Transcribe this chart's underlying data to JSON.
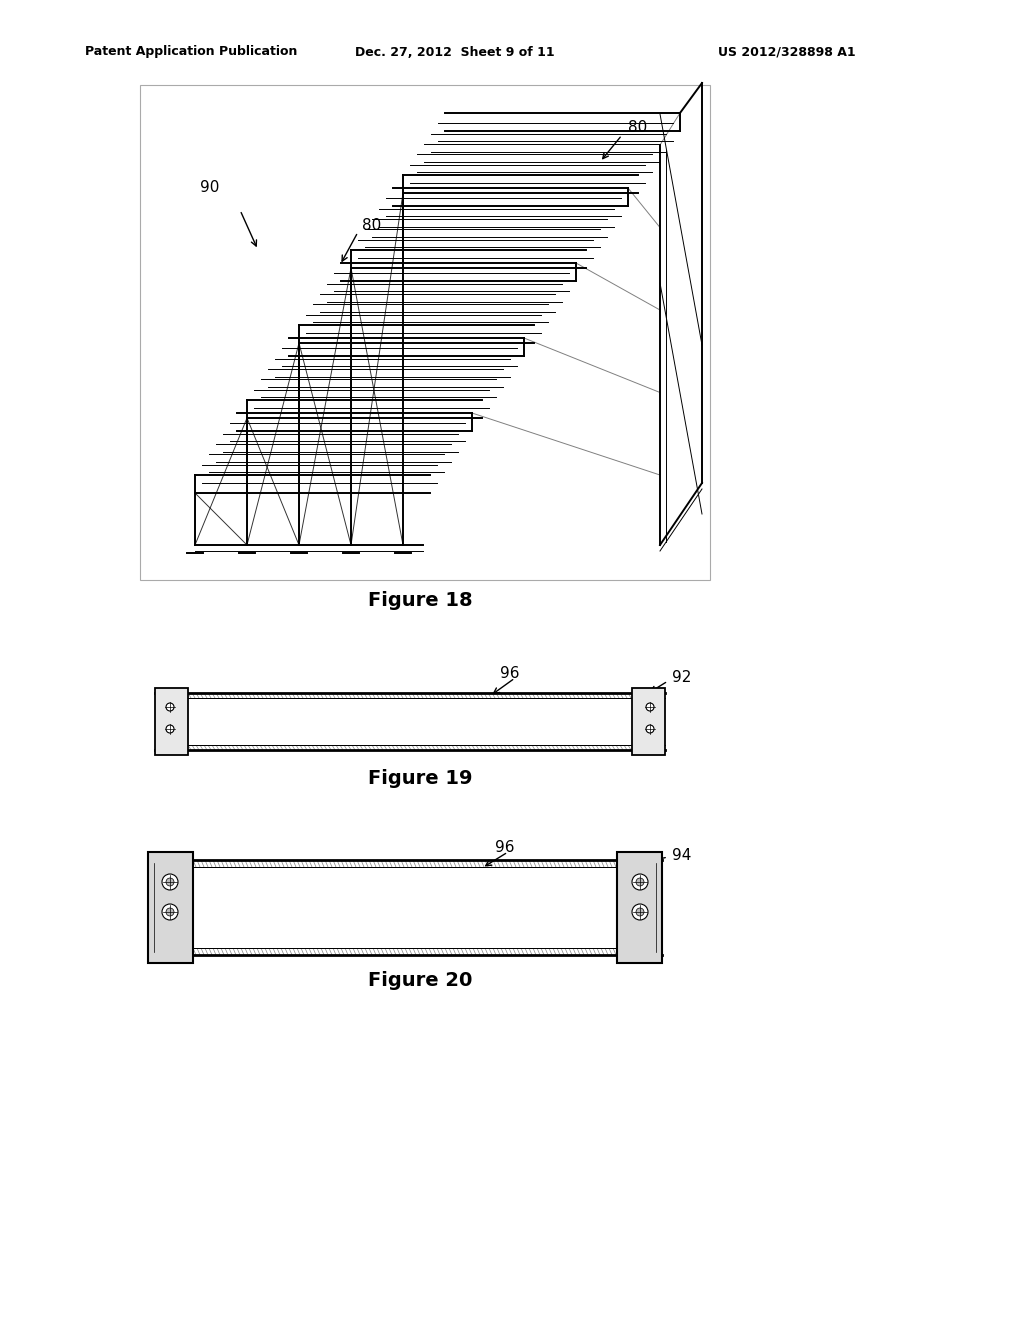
{
  "bg_color": "#ffffff",
  "header_left": "Patent Application Publication",
  "header_mid": "Dec. 27, 2012  Sheet 9 of 11",
  "header_right": "US 2012/328898 A1",
  "fig18_label": "Figure 18",
  "fig19_label": "Figure 19",
  "fig20_label": "Figure 20",
  "label_80a": "80",
  "label_80b": "80",
  "label_90": "90",
  "label_92": "92",
  "label_96a": "96",
  "label_94": "94",
  "label_96b": "96"
}
